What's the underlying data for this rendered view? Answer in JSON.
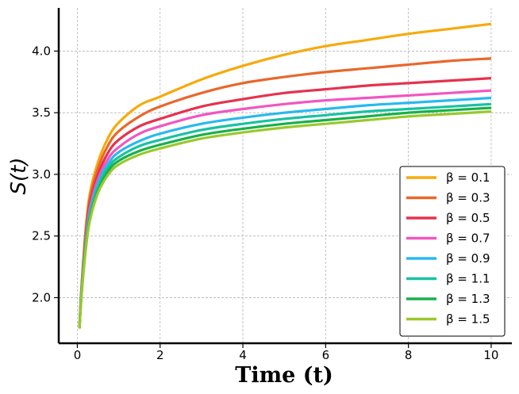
{
  "chart_data": {
    "type": "line",
    "title": "",
    "xlabel": "Time (t)",
    "ylabel": "S(t)",
    "xlim": [
      -0.45,
      10.5
    ],
    "ylim": [
      1.63,
      4.35
    ],
    "xticks": [
      0,
      2,
      4,
      6,
      8,
      10
    ],
    "xtick_labels": [
      "0",
      "2",
      "4",
      "6",
      "8",
      "10"
    ],
    "yticks": [
      2.0,
      2.5,
      3.0,
      3.5,
      4.0
    ],
    "ytick_labels": [
      "2.0",
      "2.5",
      "3.0",
      "3.5",
      "4.0"
    ],
    "grid": true,
    "legend_position": "lower-right",
    "x": [
      0.05,
      0.1,
      0.2,
      0.3,
      0.5,
      0.75,
      1,
      1.5,
      2,
      3,
      4,
      5,
      6,
      7,
      8,
      9,
      10
    ],
    "series": [
      {
        "name": "β = 0.1",
        "color": "#f6aa0c",
        "values": [
          1.75,
          2.08,
          2.55,
          2.84,
          3.1,
          3.3,
          3.42,
          3.56,
          3.63,
          3.77,
          3.88,
          3.97,
          4.04,
          4.09,
          4.14,
          4.18,
          4.22
        ]
      },
      {
        "name": "β = 0.3",
        "color": "#e9672a",
        "values": [
          1.75,
          2.07,
          2.52,
          2.8,
          3.05,
          3.24,
          3.35,
          3.47,
          3.55,
          3.66,
          3.74,
          3.79,
          3.83,
          3.86,
          3.89,
          3.92,
          3.94
        ]
      },
      {
        "name": "β = 0.5",
        "color": "#e5324f",
        "values": [
          1.75,
          2.06,
          2.49,
          2.76,
          3.0,
          3.18,
          3.28,
          3.39,
          3.45,
          3.55,
          3.61,
          3.66,
          3.69,
          3.72,
          3.74,
          3.76,
          3.78
        ]
      },
      {
        "name": "β = 0.7",
        "color": "#f156c0",
        "values": [
          1.75,
          2.05,
          2.46,
          2.72,
          2.96,
          3.13,
          3.22,
          3.33,
          3.39,
          3.48,
          3.53,
          3.57,
          3.6,
          3.62,
          3.64,
          3.66,
          3.68
        ]
      },
      {
        "name": "β = 0.9",
        "color": "#28b9f1",
        "values": [
          1.75,
          2.04,
          2.44,
          2.69,
          2.93,
          3.09,
          3.18,
          3.27,
          3.33,
          3.41,
          3.46,
          3.5,
          3.53,
          3.56,
          3.58,
          3.6,
          3.62
        ]
      },
      {
        "name": "β = 1.1",
        "color": "#17c2a3",
        "values": [
          1.75,
          2.03,
          2.42,
          2.66,
          2.9,
          3.06,
          3.14,
          3.23,
          3.28,
          3.36,
          3.41,
          3.45,
          3.48,
          3.51,
          3.53,
          3.55,
          3.57
        ]
      },
      {
        "name": "β = 1.3",
        "color": "#18b04b",
        "values": [
          1.75,
          2.02,
          2.4,
          2.64,
          2.87,
          3.03,
          3.11,
          3.19,
          3.24,
          3.32,
          3.37,
          3.41,
          3.44,
          3.47,
          3.5,
          3.52,
          3.54
        ]
      },
      {
        "name": "β = 1.5",
        "color": "#9ac82d",
        "values": [
          1.75,
          2.01,
          2.38,
          2.62,
          2.85,
          3.0,
          3.08,
          3.16,
          3.21,
          3.29,
          3.34,
          3.38,
          3.41,
          3.44,
          3.47,
          3.49,
          3.51
        ]
      }
    ]
  }
}
